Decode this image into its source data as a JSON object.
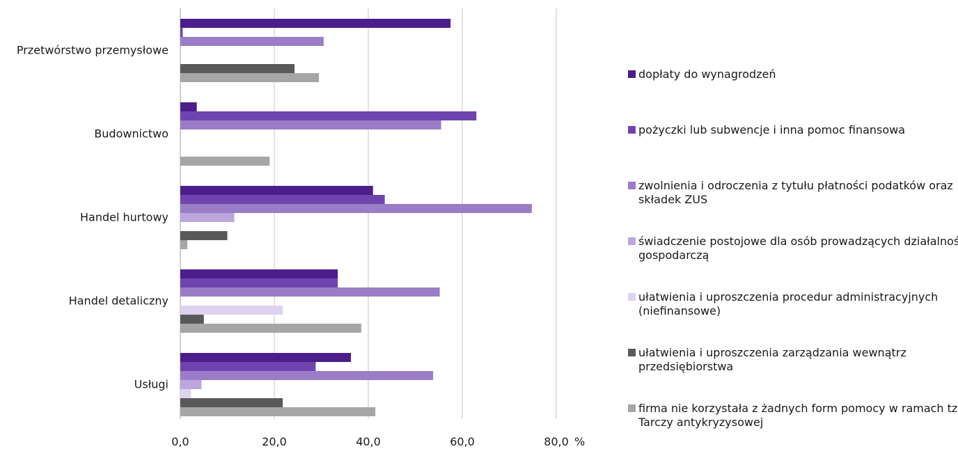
{
  "chart_data": {
    "type": "bar",
    "orientation": "horizontal",
    "categories": [
      "Przetwórstwo przemysłowe",
      "Budownictwo",
      "Handel hurtowy",
      "Handel detaliczny",
      "Usługi"
    ],
    "series": [
      {
        "name": "dopłaty do wynagrodzeń",
        "color": "#4B1E8C",
        "values": [
          57.5,
          3.5,
          41.0,
          33.5,
          36.3
        ]
      },
      {
        "name": "pożyczki lub subwencje i inna pomoc finansowa",
        "color": "#6F44B0",
        "values": [
          0.5,
          63.0,
          43.5,
          33.5,
          28.8
        ]
      },
      {
        "name": "zwolnienia i odroczenia z tytułu płatności podatków oraz składek ZUS",
        "color": "#9A7DC6",
        "values": [
          30.5,
          55.5,
          74.8,
          55.2,
          53.8
        ]
      },
      {
        "name": "świadczenie postojowe dla osób prowadzących działalność gospodarczą",
        "color": "#BBA7DC",
        "values": [
          0,
          0,
          11.5,
          0,
          4.5
        ]
      },
      {
        "name": "ułatwienia i uproszczenia procedur administracyjnych (niefinansowe)",
        "color": "#DED3EE",
        "values": [
          0,
          0,
          0,
          21.8,
          2.3
        ]
      },
      {
        "name": "ułatwienia i uproszczenia zarządzania wewnątrz przedsiębiorstwa",
        "color": "#595959",
        "values": [
          24.3,
          0,
          10.0,
          5.0,
          21.8
        ]
      },
      {
        "name": "firma nie korzystała z żadnych form pomocy w ramach tzw. Tarczy antykryzysowej",
        "color": "#A6A6A6",
        "values": [
          29.5,
          19.0,
          1.5,
          38.5,
          41.5
        ]
      }
    ],
    "xlim": [
      0,
      80
    ],
    "xticks": [
      0,
      20,
      40,
      60,
      80
    ],
    "tick_labels": [
      "0,0",
      "20,0",
      "40,0",
      "60,0",
      "80,0"
    ],
    "unit_label": "%",
    "legend_position": "right",
    "grid": true
  }
}
